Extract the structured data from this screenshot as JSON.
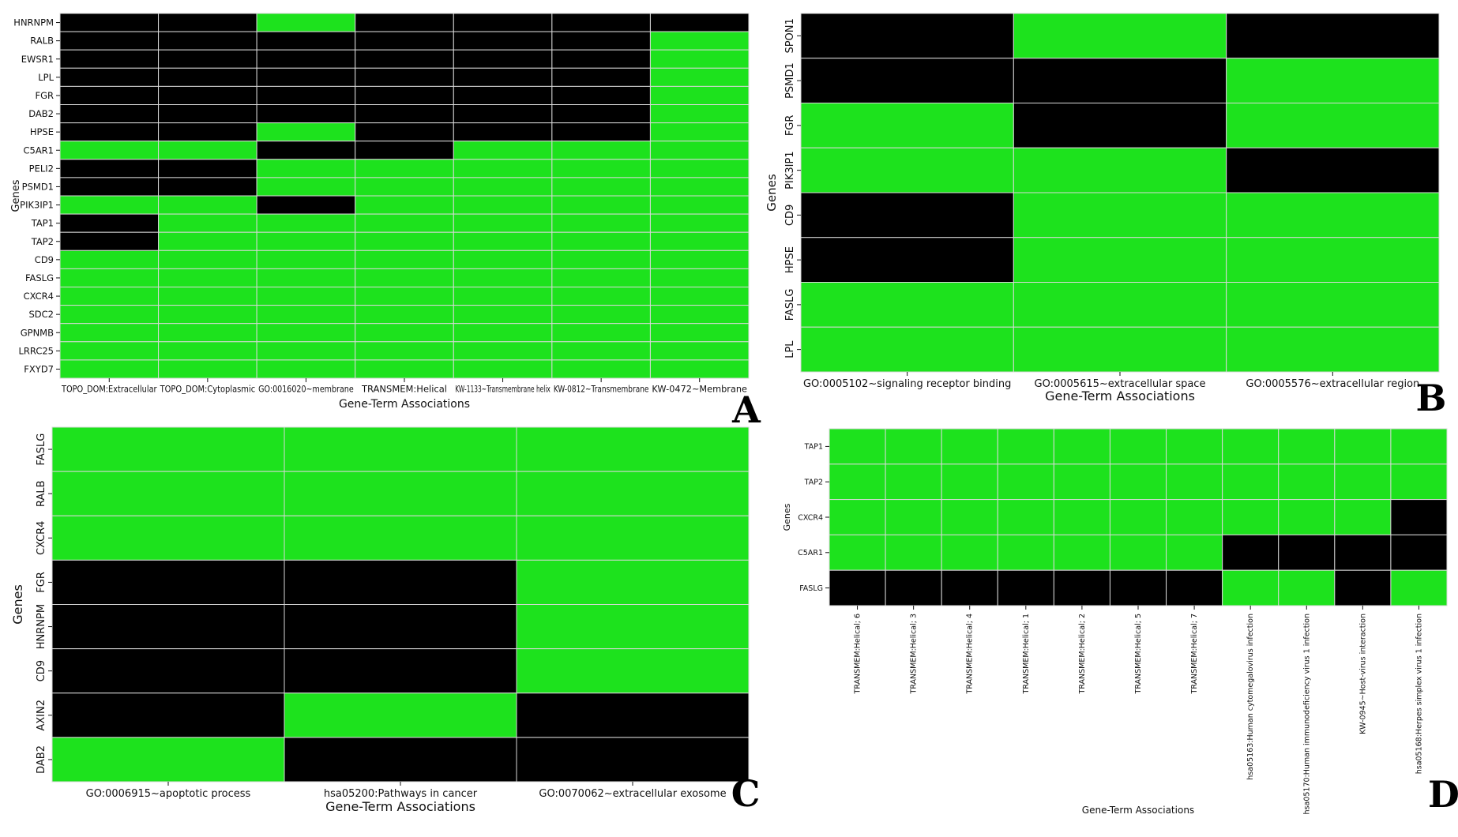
{
  "colors": {
    "present": "#1de21d",
    "absent": "#000000",
    "grid": "#d8d8d8"
  },
  "chart_data": [
    {
      "panel": "A",
      "type": "heatmap",
      "xlabel": "Gene-Term Associations",
      "ylabel": "Genes",
      "columns": [
        "TOPO_DOM:Extracellular",
        "TOPO_DOM:Cytoplasmic",
        "GO:0016020~membrane",
        "TRANSMEM:Helical",
        "KW-1133~Transmembrane helix",
        "KW-0812~Transmembrane",
        "KW-0472~Membrane"
      ],
      "rows": [
        "HNRNPM",
        "RALB",
        "EWSR1",
        "LPL",
        "FGR",
        "DAB2",
        "HPSE",
        "C5AR1",
        "PELI2",
        "PSMD1",
        "PIK3IP1",
        "TAP1",
        "TAP2",
        "CD9",
        "FASLG",
        "CXCR4",
        "SDC2",
        "GPNMB",
        "LRRC25",
        "FXYD7"
      ],
      "values": [
        [
          0,
          0,
          1,
          0,
          0,
          0,
          0
        ],
        [
          0,
          0,
          0,
          0,
          0,
          0,
          1
        ],
        [
          0,
          0,
          0,
          0,
          0,
          0,
          1
        ],
        [
          0,
          0,
          0,
          0,
          0,
          0,
          1
        ],
        [
          0,
          0,
          0,
          0,
          0,
          0,
          1
        ],
        [
          0,
          0,
          0,
          0,
          0,
          0,
          1
        ],
        [
          0,
          0,
          1,
          0,
          0,
          0,
          1
        ],
        [
          1,
          1,
          0,
          0,
          1,
          1,
          1
        ],
        [
          0,
          0,
          1,
          1,
          1,
          1,
          1
        ],
        [
          0,
          0,
          1,
          1,
          1,
          1,
          1
        ],
        [
          1,
          1,
          0,
          1,
          1,
          1,
          1
        ],
        [
          0,
          1,
          1,
          1,
          1,
          1,
          1
        ],
        [
          0,
          1,
          1,
          1,
          1,
          1,
          1
        ],
        [
          1,
          1,
          1,
          1,
          1,
          1,
          1
        ],
        [
          1,
          1,
          1,
          1,
          1,
          1,
          1
        ],
        [
          1,
          1,
          1,
          1,
          1,
          1,
          1
        ],
        [
          1,
          1,
          1,
          1,
          1,
          1,
          1
        ],
        [
          1,
          1,
          1,
          1,
          1,
          1,
          1
        ],
        [
          1,
          1,
          1,
          1,
          1,
          1,
          1
        ],
        [
          1,
          1,
          1,
          1,
          1,
          1,
          1
        ]
      ]
    },
    {
      "panel": "B",
      "type": "heatmap",
      "xlabel": "Gene-Term Associations",
      "ylabel": "Genes",
      "columns": [
        "GO:0005102~signaling receptor binding",
        "GO:0005615~extracellular space",
        "GO:0005576~extracellular region"
      ],
      "rows": [
        "SPON1",
        "PSMD1",
        "FGR",
        "PIK3IP1",
        "CD9",
        "HPSE",
        "FASLG",
        "LPL"
      ],
      "values": [
        [
          0,
          1,
          0
        ],
        [
          0,
          0,
          1
        ],
        [
          1,
          0,
          1
        ],
        [
          1,
          1,
          0
        ],
        [
          0,
          1,
          1
        ],
        [
          0,
          1,
          1
        ],
        [
          1,
          1,
          1
        ],
        [
          1,
          1,
          1
        ]
      ]
    },
    {
      "panel": "C",
      "type": "heatmap",
      "xlabel": "Gene-Term Associations",
      "ylabel": "Genes",
      "columns": [
        "GO:0006915~apoptotic process",
        "hsa05200:Pathways in cancer",
        "GO:0070062~extracellular exosome"
      ],
      "rows": [
        "FASLG",
        "RALB",
        "CXCR4",
        "FGR",
        "HNRNPM",
        "CD9",
        "AXIN2",
        "DAB2"
      ],
      "values": [
        [
          1,
          1,
          1
        ],
        [
          1,
          1,
          1
        ],
        [
          1,
          1,
          1
        ],
        [
          0,
          0,
          1
        ],
        [
          0,
          0,
          1
        ],
        [
          0,
          0,
          1
        ],
        [
          0,
          1,
          0
        ],
        [
          1,
          0,
          0
        ]
      ]
    },
    {
      "panel": "D",
      "type": "heatmap",
      "xlabel": "Gene-Term Associations",
      "ylabel": "Genes",
      "columns": [
        "TRANSMEM:Helical; 6",
        "TRANSMEM:Helical; 3",
        "TRANSMEM:Helical; 4",
        "TRANSMEM:Helical; 1",
        "TRANSMEM:Helical; 2",
        "TRANSMEM:Helical; 5",
        "TRANSMEM:Helical; 7",
        "hsa05163:Human cytomegalovirus infection",
        "hsa05170:Human immunodeficiency virus 1 infection",
        "KW-0945~Host-virus interaction",
        "hsa05168:Herpes simplex virus 1 infection"
      ],
      "rows": [
        "TAP1",
        "TAP2",
        "CXCR4",
        "C5AR1",
        "FASLG"
      ],
      "values": [
        [
          1,
          1,
          1,
          1,
          1,
          1,
          1,
          1,
          1,
          1,
          1
        ],
        [
          1,
          1,
          1,
          1,
          1,
          1,
          1,
          1,
          1,
          1,
          1
        ],
        [
          1,
          1,
          1,
          1,
          1,
          1,
          1,
          1,
          1,
          1,
          0
        ],
        [
          1,
          1,
          1,
          1,
          1,
          1,
          1,
          0,
          0,
          0,
          0
        ],
        [
          0,
          0,
          0,
          0,
          0,
          0,
          0,
          1,
          1,
          0,
          1
        ]
      ]
    }
  ]
}
